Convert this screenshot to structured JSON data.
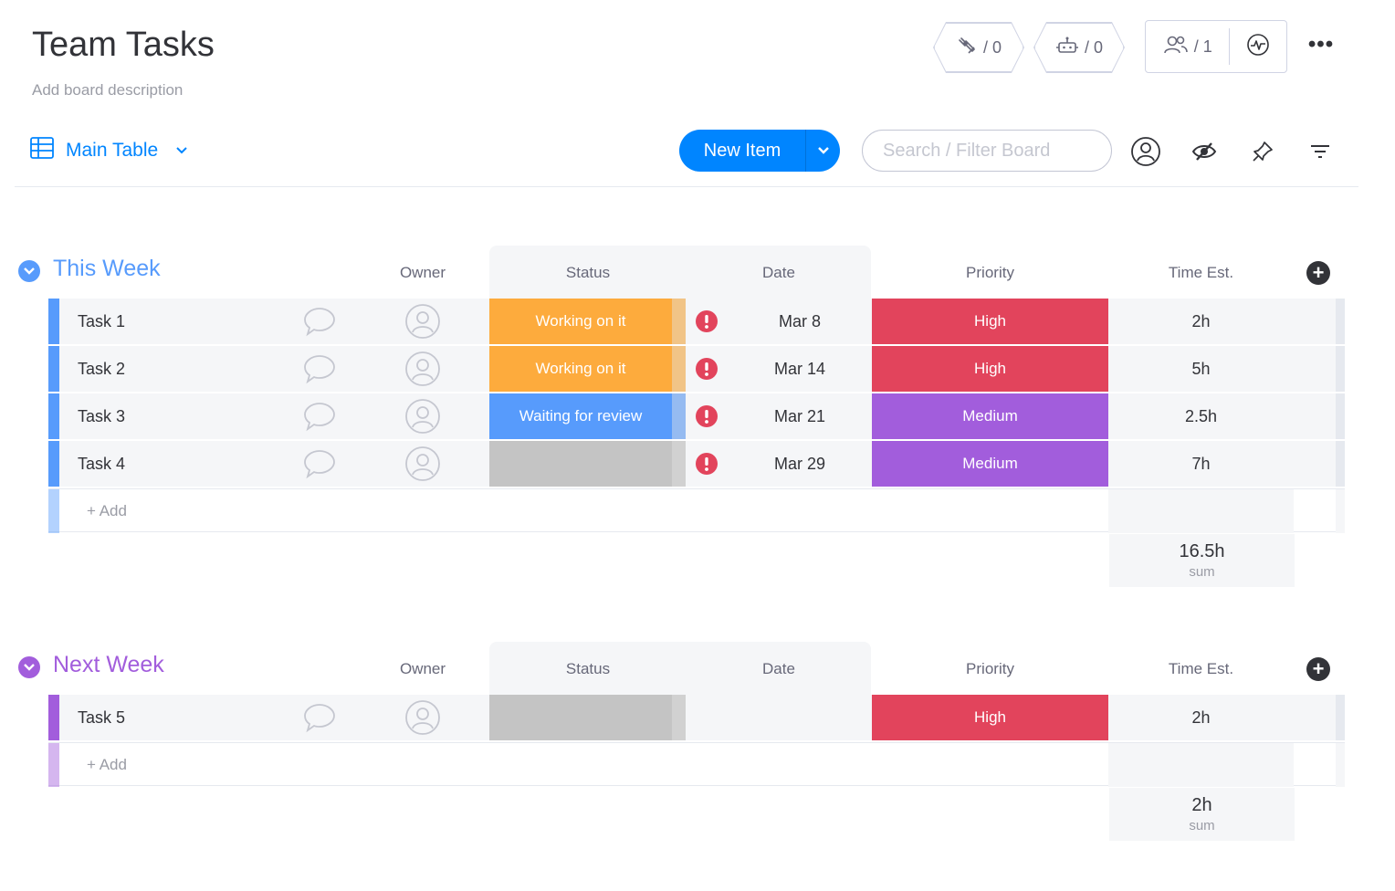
{
  "board": {
    "title": "Team Tasks",
    "description": "Add board description",
    "automations_count": "/ 0",
    "integrations_count": "/ 0",
    "members_count": "/ 1"
  },
  "toolbar": {
    "view_label": "Main Table",
    "new_item_label": "New Item",
    "search_placeholder": "Search / Filter Board"
  },
  "columns": {
    "owner": "Owner",
    "status": "Status",
    "date": "Date",
    "priority": "Priority",
    "time": "Time Est."
  },
  "colors": {
    "accent": "#0085ff",
    "working": "#fdab3d",
    "waiting": "#579bfc",
    "empty_status": "#c4c4c4",
    "high": "#e2445c",
    "medium": "#a25ddc",
    "alert": "#e2445c",
    "group1": "#579bfc",
    "group2": "#a25ddc"
  },
  "groups": [
    {
      "title": "This Week",
      "color": "#579bfc",
      "add_label": "+ Add",
      "sum_value": "16.5h",
      "sum_label": "sum",
      "items": [
        {
          "name": "Task 1",
          "status": "Working on it",
          "status_color": "#fdab3d",
          "date": "Mar 8",
          "priority": "High",
          "priority_color": "#e2445c",
          "time": "2h",
          "alert": true
        },
        {
          "name": "Task 2",
          "status": "Working on it",
          "status_color": "#fdab3d",
          "date": "Mar 14",
          "priority": "High",
          "priority_color": "#e2445c",
          "time": "5h",
          "alert": true
        },
        {
          "name": "Task 3",
          "status": "Waiting for review",
          "status_color": "#579bfc",
          "date": "Mar 21",
          "priority": "Medium",
          "priority_color": "#a25ddc",
          "time": "2.5h",
          "alert": true
        },
        {
          "name": "Task 4",
          "status": "",
          "status_color": "#c4c4c4",
          "date": "Mar 29",
          "priority": "Medium",
          "priority_color": "#a25ddc",
          "time": "7h",
          "alert": true
        }
      ]
    },
    {
      "title": "Next Week",
      "color": "#a25ddc",
      "add_label": "+ Add",
      "sum_value": "2h",
      "sum_label": "sum",
      "items": [
        {
          "name": "Task 5",
          "status": "",
          "status_color": "#c4c4c4",
          "date": "",
          "priority": "High",
          "priority_color": "#e2445c",
          "time": "2h",
          "alert": false
        }
      ]
    }
  ]
}
